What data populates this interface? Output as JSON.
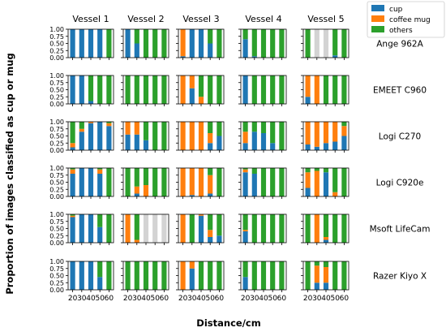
{
  "chart_data": {
    "type": "bar",
    "stacked": true,
    "ylabel": "Proportion of images classified as cup or mug",
    "xlabel": "Distance/cm",
    "categories": [
      "20",
      "30",
      "40",
      "50",
      "60"
    ],
    "ylim": [
      0,
      1
    ],
    "yticks": [
      "0.00",
      "0.25",
      "0.50",
      "0.75",
      "1.00"
    ],
    "columns": [
      "Vessel 1",
      "Vessel 2",
      "Vessel 3",
      "Vessel 4",
      "Vessel 5"
    ],
    "rows": [
      "Ange 962A",
      "EMEET C960",
      "Logi C270",
      "Logi C920e",
      "Msoft LifeCam",
      "Razer Kiyo X"
    ],
    "series": [
      {
        "name": "cup",
        "color": "#1f77b4"
      },
      {
        "name": "coffee mug",
        "color": "#ff7f0e"
      },
      {
        "name": "others",
        "color": "#2ca02c"
      }
    ],
    "legend_position": "top-right",
    "missing_color": "#d3d3d3",
    "data": [
      [
        [
          [
            1,
            0
          ],
          [
            1,
            0
          ],
          [
            1,
            0
          ],
          [
            1,
            0
          ],
          [
            0,
            0
          ]
        ],
        [
          [
            1,
            0
          ],
          [
            0.5,
            0
          ],
          [
            0,
            0
          ],
          [
            0,
            0
          ],
          [
            0,
            0
          ]
        ],
        [
          [
            0.05,
            0.95
          ],
          [
            1,
            0
          ],
          [
            1,
            0
          ],
          [
            0.5,
            0
          ],
          [
            0,
            0
          ]
        ],
        [
          [
            0.65,
            0
          ],
          [
            0.05,
            0
          ],
          [
            0,
            0
          ],
          [
            0,
            0
          ],
          [
            0,
            0
          ]
        ],
        [
          [
            0,
            0
          ],
          null,
          null,
          [
            0.08,
            0
          ],
          [
            0,
            0
          ]
        ]
      ],
      [
        [
          [
            1,
            0
          ],
          [
            1,
            0
          ],
          [
            0.1,
            0
          ],
          [
            0,
            0
          ],
          [
            0,
            0
          ]
        ],
        [
          [
            0,
            0
          ],
          [
            0,
            0
          ],
          [
            0,
            0
          ],
          [
            0,
            0
          ],
          [
            0,
            0
          ]
        ],
        [
          [
            0,
            1
          ],
          [
            0.55,
            0.45
          ],
          [
            0,
            0.25
          ],
          [
            0,
            0
          ],
          [
            0,
            0
          ]
        ],
        [
          [
            1,
            0
          ],
          [
            0,
            0
          ],
          [
            0,
            0
          ],
          [
            0,
            0
          ],
          [
            0,
            0
          ]
        ],
        [
          [
            0.25,
            0.75
          ],
          [
            0,
            1
          ],
          [
            0,
            0
          ],
          [
            0,
            0
          ],
          [
            0,
            0
          ]
        ]
      ],
      [
        [
          [
            0.1,
            0.15
          ],
          [
            0.65,
            0.1
          ],
          [
            0.95,
            0.05
          ],
          [
            1,
            0
          ],
          [
            0.85,
            0.1
          ]
        ],
        [
          [
            0.55,
            0.45
          ],
          [
            0.55,
            0.45
          ],
          [
            0.35,
            0
          ],
          [
            0,
            0
          ],
          [
            0,
            0
          ]
        ],
        [
          [
            0,
            1
          ],
          [
            0,
            1
          ],
          [
            0,
            1
          ],
          [
            0.25,
            0.35
          ],
          [
            0.5,
            0
          ]
        ],
        [
          [
            0.25,
            0.4
          ],
          [
            0.65,
            0
          ],
          [
            0.6,
            0
          ],
          [
            0.25,
            0
          ],
          [
            0,
            0
          ]
        ],
        [
          [
            0.2,
            0.8
          ],
          [
            0.12,
            0.88
          ],
          [
            0.25,
            0.75
          ],
          [
            0.3,
            0.7
          ],
          [
            0.5,
            0.35
          ]
        ]
      ],
      [
        [
          [
            0.8,
            0.15
          ],
          [
            1,
            0
          ],
          [
            1,
            0
          ],
          [
            0.8,
            0.15
          ],
          [
            0,
            0
          ]
        ],
        [
          [
            0,
            0
          ],
          [
            0.1,
            0.25
          ],
          [
            0,
            0.4
          ],
          [
            0,
            0
          ],
          [
            0,
            0
          ]
        ],
        [
          [
            0,
            1
          ],
          [
            0.05,
            0.95
          ],
          [
            0,
            1
          ],
          [
            0.1,
            0.65
          ],
          [
            0,
            0
          ]
        ],
        [
          [
            0.85,
            0.1
          ],
          [
            0.8,
            0
          ],
          [
            0,
            0
          ],
          [
            0,
            0
          ],
          [
            0,
            0
          ]
        ],
        [
          [
            0.3,
            0.55
          ],
          [
            0,
            0.9
          ],
          [
            0.85,
            0
          ],
          [
            0,
            0.15
          ],
          [
            0,
            0
          ]
        ]
      ],
      [
        [
          [
            0.9,
            0.05
          ],
          [
            1,
            0
          ],
          [
            1,
            0
          ],
          [
            0.55,
            0
          ],
          [
            0,
            0
          ]
        ],
        [
          [
            0,
            1
          ],
          [
            0,
            0.1
          ],
          null,
          null,
          null
        ],
        [
          [
            0,
            1
          ],
          [
            0,
            0
          ],
          [
            0.95,
            0.05
          ],
          [
            0.2,
            0.25
          ],
          [
            0.25,
            0
          ]
        ],
        [
          [
            0.4,
            0.05
          ],
          [
            0,
            0
          ],
          [
            0,
            0
          ],
          [
            0,
            0
          ],
          [
            0,
            0
          ]
        ],
        [
          [
            0,
            0
          ],
          [
            0,
            1
          ],
          [
            0.1,
            0.1
          ],
          [
            0,
            0
          ],
          [
            0,
            0
          ]
        ]
      ],
      [
        [
          [
            1,
            0
          ],
          [
            1,
            0
          ],
          [
            1,
            0
          ],
          [
            0.45,
            0
          ],
          [
            0,
            0
          ]
        ],
        [
          [
            0,
            0
          ],
          [
            0,
            0
          ],
          [
            0,
            0
          ],
          [
            0,
            0
          ],
          [
            0,
            0
          ]
        ],
        [
          [
            0,
            1
          ],
          [
            0.75,
            0.25
          ],
          [
            0,
            0
          ],
          [
            0,
            0
          ],
          [
            0,
            0
          ]
        ],
        [
          [
            0.45,
            0
          ],
          [
            0,
            0
          ],
          [
            0,
            0
          ],
          [
            0,
            0
          ],
          [
            0,
            0
          ]
        ],
        [
          [
            0,
            0
          ],
          [
            0.25,
            0.6
          ],
          [
            0.25,
            0.55
          ],
          [
            0,
            0
          ],
          [
            0,
            0
          ]
        ]
      ]
    ]
  }
}
